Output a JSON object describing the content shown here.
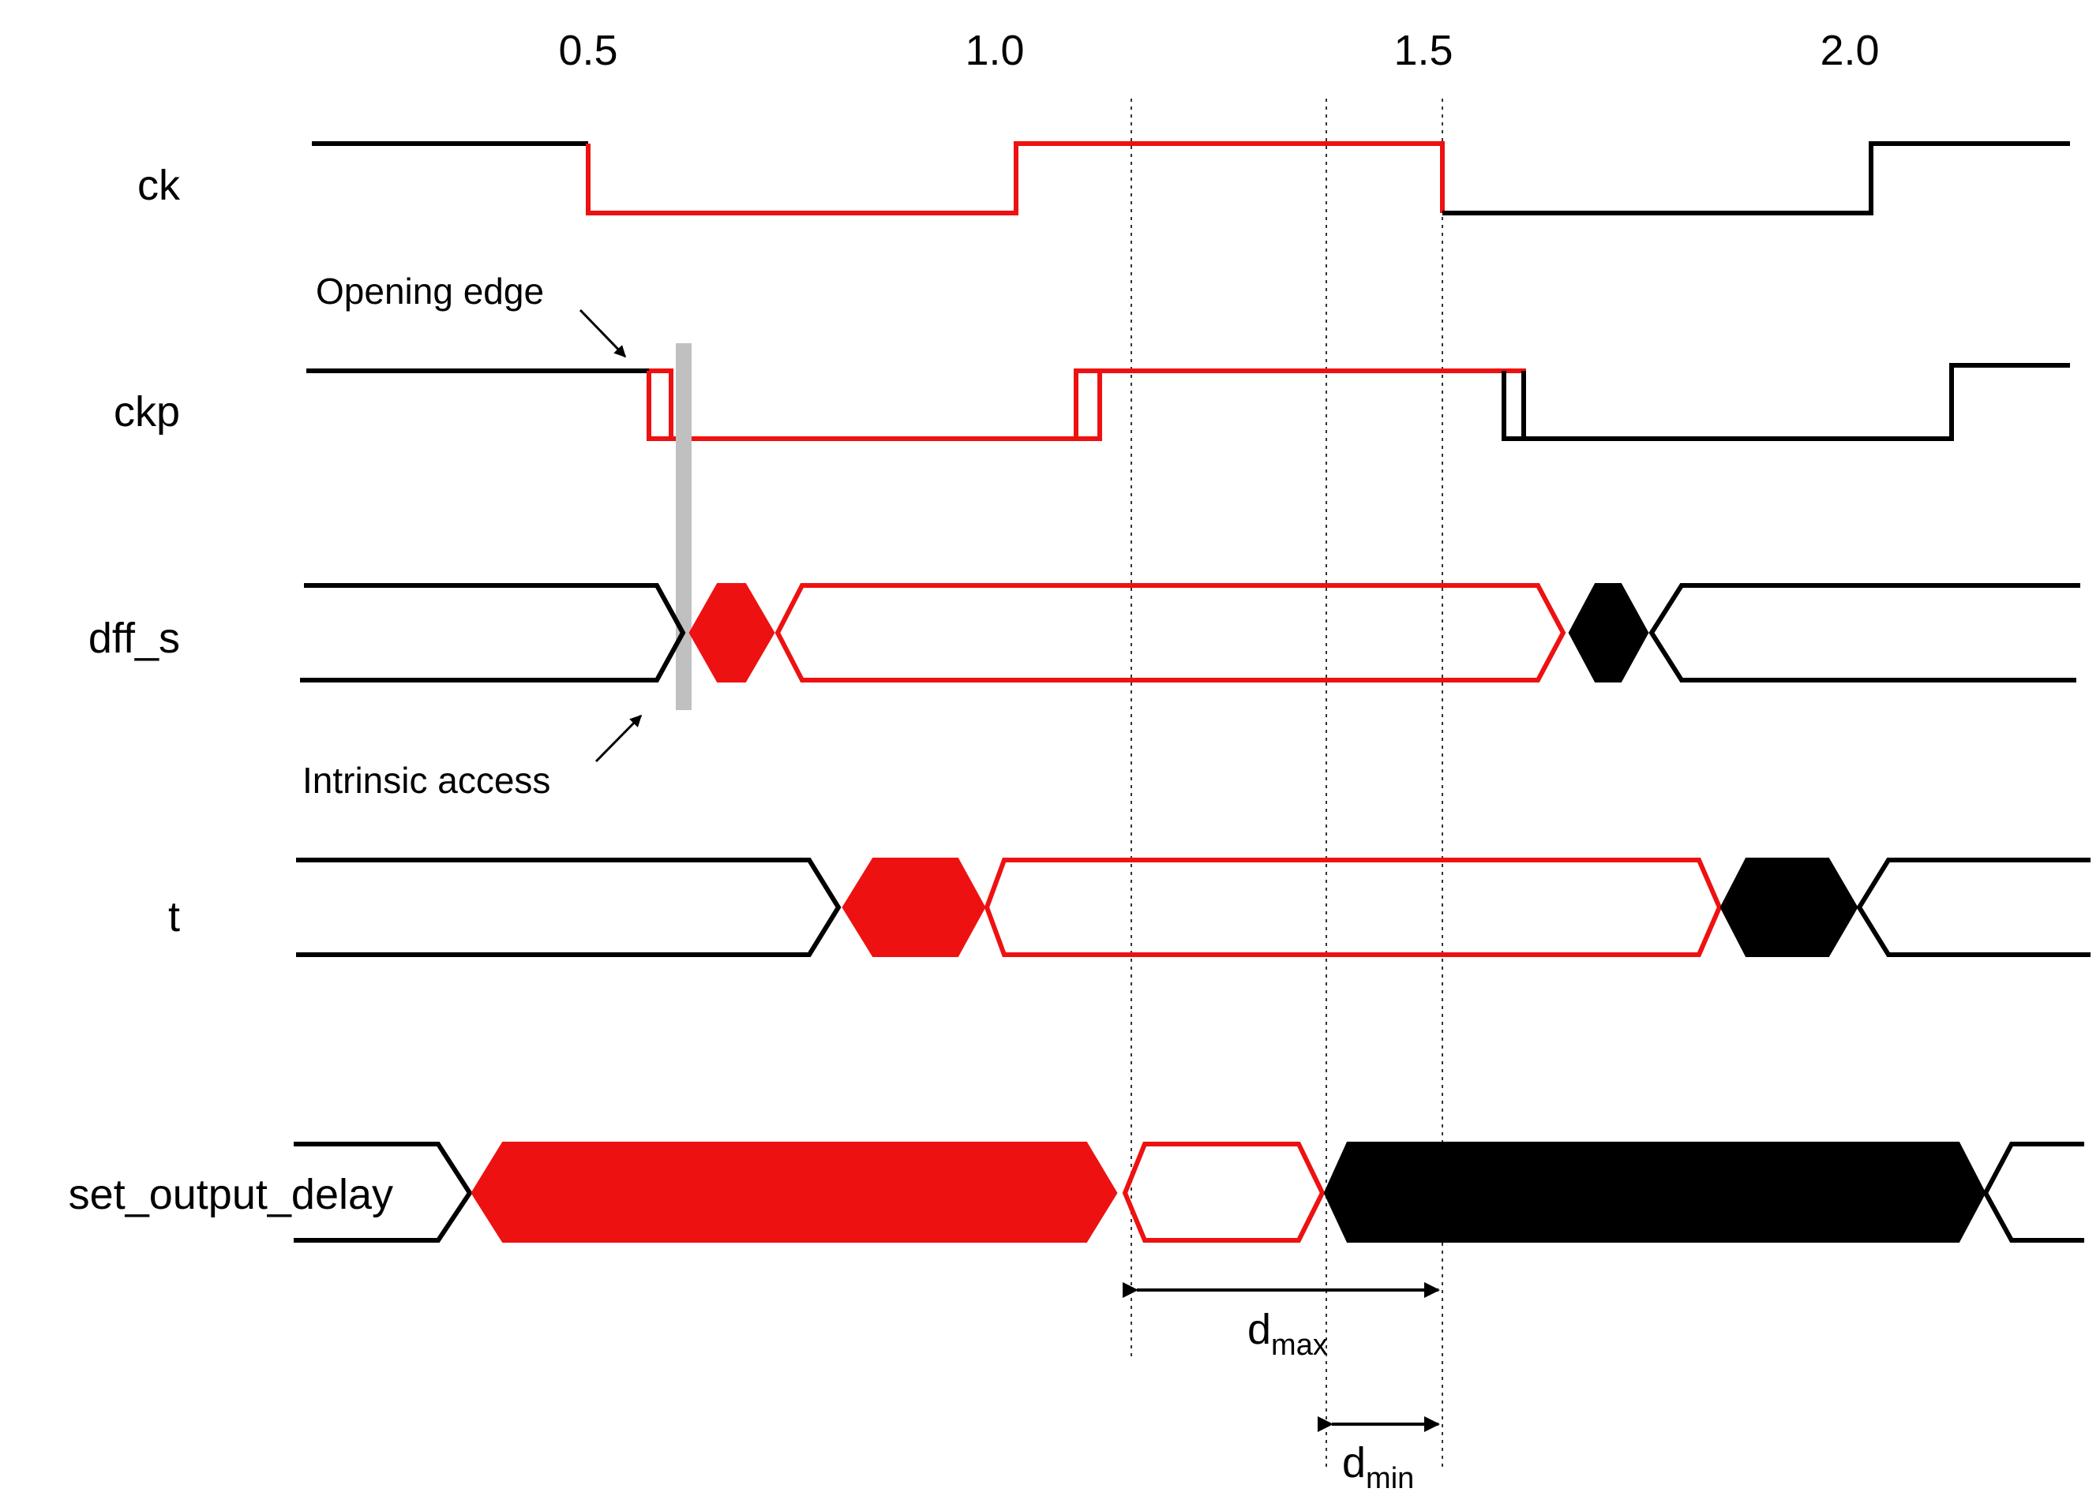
{
  "colors": {
    "highlight": "#ee1111",
    "normal": "#000000",
    "marker": "#c0c0c0",
    "guide": "#333333"
  },
  "time_axis": {
    "ticks": [
      "0.5",
      "1.0",
      "1.5",
      "2.0"
    ]
  },
  "signals": {
    "ck": "ck",
    "ckp": "ckp",
    "dff_s": "dff_s",
    "t": "t",
    "set_output_delay": "set_output_delay"
  },
  "annotations": {
    "opening_edge": "Opening edge",
    "intrinsic_access": "Intrinsic access"
  },
  "dimensions": {
    "dmax": {
      "base": "d",
      "sub": "max"
    },
    "dmin": {
      "base": "d",
      "sub": "min"
    }
  }
}
